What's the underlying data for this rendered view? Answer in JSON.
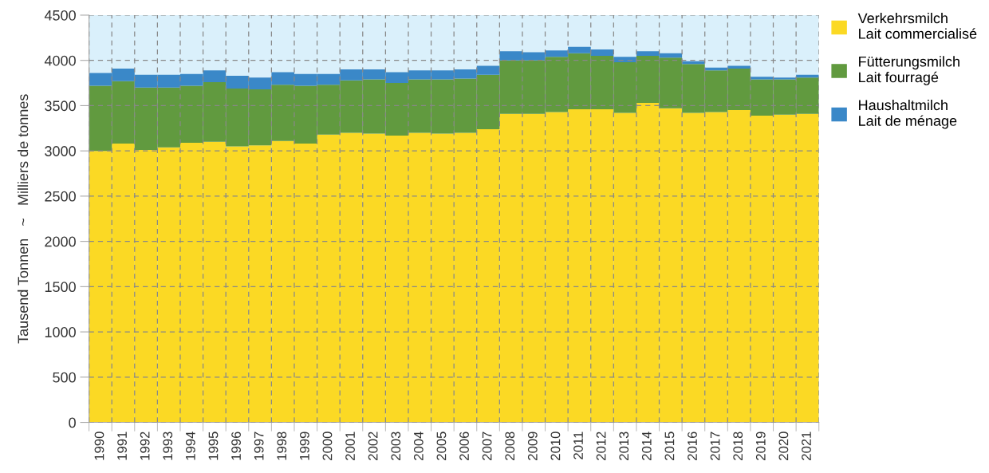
{
  "chart_data": {
    "type": "bar",
    "stacked": true,
    "ylabel": "Tausend Tonnen   ~   Milliers de tonnes",
    "categories": [
      "1990",
      "1991",
      "1992",
      "1993",
      "1994",
      "1995",
      "1996",
      "1997",
      "1998",
      "1999",
      "2000",
      "2001",
      "2002",
      "2003",
      "2004",
      "2005",
      "2006",
      "2007",
      "2008",
      "2009",
      "2010",
      "2011",
      "2012",
      "2013",
      "2014",
      "2015",
      "2016",
      "2017",
      "2018",
      "2019",
      "2020",
      "2021"
    ],
    "series": [
      {
        "name": "Verkehrsmilch\nLait commercialisé",
        "color": "#fbd924",
        "values": [
          3000,
          3080,
          3010,
          3040,
          3090,
          3100,
          3050,
          3060,
          3110,
          3080,
          3180,
          3200,
          3190,
          3170,
          3200,
          3190,
          3200,
          3240,
          3410,
          3410,
          3430,
          3460,
          3460,
          3420,
          3530,
          3470,
          3420,
          3430,
          3450,
          3390,
          3400,
          3410
        ]
      },
      {
        "name": "Fütterungsmilch\nLait fourragé",
        "color": "#619a3f",
        "values": [
          720,
          690,
          690,
          660,
          630,
          660,
          640,
          620,
          620,
          640,
          550,
          580,
          600,
          580,
          590,
          600,
          600,
          600,
          590,
          590,
          610,
          620,
          590,
          560,
          520,
          560,
          540,
          460,
          460,
          400,
          390,
          400
        ]
      },
      {
        "name": "Haushaltmilch\nLait de ménage",
        "color": "#3a88c8",
        "values": [
          140,
          140,
          140,
          140,
          130,
          130,
          140,
          130,
          140,
          130,
          120,
          120,
          110,
          120,
          100,
          100,
          100,
          100,
          100,
          90,
          70,
          70,
          70,
          60,
          50,
          50,
          30,
          30,
          30,
          30,
          20,
          30
        ]
      }
    ],
    "ylim": [
      0,
      4500
    ],
    "yticks": [
      0,
      500,
      1000,
      1500,
      2000,
      2500,
      3000,
      3500,
      4000,
      4500
    ],
    "bands": [
      {
        "axis": "y",
        "from": 0,
        "to": 4500,
        "color": "#daf0fb"
      }
    ],
    "grid": true,
    "legend": "top right"
  }
}
